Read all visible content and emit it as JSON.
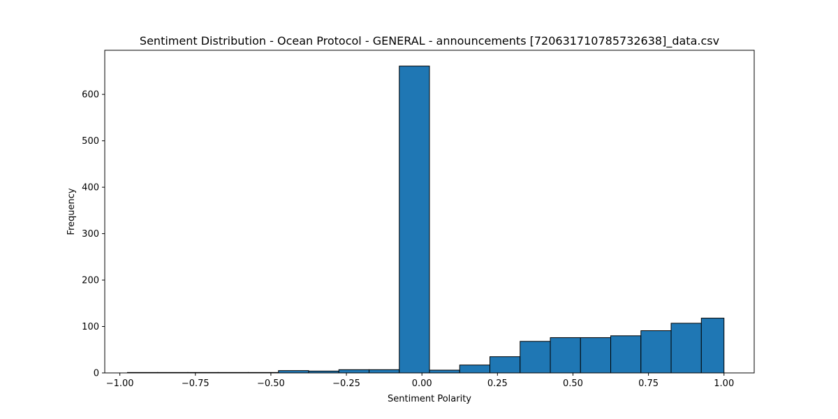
{
  "chart_data": {
    "type": "bar",
    "subtype": "histogram",
    "title": "Sentiment Distribution - Ocean Protocol - GENERAL - announcements [720631710785732638]_data.csv",
    "xlabel": "Sentiment Polarity",
    "ylabel": "Frequency",
    "xlim": [
      -1.05,
      1.1
    ],
    "ylim": [
      0,
      695
    ],
    "x_ticks": [
      -1.0,
      -0.75,
      -0.5,
      -0.25,
      0.0,
      0.25,
      0.5,
      0.75,
      1.0
    ],
    "x_tick_labels": [
      "−1.00",
      "−0.75",
      "−0.50",
      "−0.25",
      "0.00",
      "0.25",
      "0.50",
      "0.75",
      "1.00"
    ],
    "y_ticks": [
      0,
      100,
      200,
      300,
      400,
      500,
      600
    ],
    "y_tick_labels": [
      "0",
      "100",
      "200",
      "300",
      "400",
      "500",
      "600"
    ],
    "bar_color": "#1f77b4",
    "edge_color": "#000000",
    "grid": false,
    "bins": [
      {
        "x0": -0.975,
        "x1": -0.875,
        "count": 1
      },
      {
        "x0": -0.875,
        "x1": -0.775,
        "count": 1
      },
      {
        "x0": -0.775,
        "x1": -0.675,
        "count": 1
      },
      {
        "x0": -0.675,
        "x1": -0.575,
        "count": 1
      },
      {
        "x0": -0.575,
        "x1": -0.475,
        "count": 1
      },
      {
        "x0": -0.475,
        "x1": -0.375,
        "count": 5
      },
      {
        "x0": -0.375,
        "x1": -0.275,
        "count": 4
      },
      {
        "x0": -0.275,
        "x1": -0.175,
        "count": 7
      },
      {
        "x0": -0.175,
        "x1": -0.075,
        "count": 7
      },
      {
        "x0": -0.075,
        "x1": 0.025,
        "count": 661
      },
      {
        "x0": 0.025,
        "x1": 0.125,
        "count": 6
      },
      {
        "x0": 0.125,
        "x1": 0.225,
        "count": 17
      },
      {
        "x0": 0.225,
        "x1": 0.325,
        "count": 35
      },
      {
        "x0": 0.325,
        "x1": 0.425,
        "count": 68
      },
      {
        "x0": 0.425,
        "x1": 0.525,
        "count": 76
      },
      {
        "x0": 0.525,
        "x1": 0.625,
        "count": 76
      },
      {
        "x0": 0.625,
        "x1": 0.725,
        "count": 80
      },
      {
        "x0": 0.725,
        "x1": 0.825,
        "count": 91
      },
      {
        "x0": 0.825,
        "x1": 0.925,
        "count": 107
      },
      {
        "x0": 0.925,
        "x1": 1.0,
        "count": 118
      }
    ]
  }
}
